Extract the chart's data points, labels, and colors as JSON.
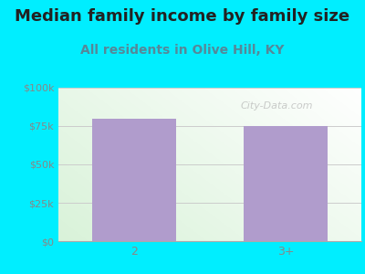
{
  "title": "Median family income by family size",
  "subtitle": "All residents in Olive Hill, KY",
  "categories": [
    "2",
    "3+"
  ],
  "values": [
    80000,
    75000
  ],
  "bar_color": "#b09ccc",
  "background_outer": "#00eeff",
  "ylim": [
    0,
    100000
  ],
  "yticks": [
    0,
    25000,
    50000,
    75000,
    100000
  ],
  "ytick_labels": [
    "$0",
    "$25k",
    "$50k",
    "$75k",
    "$100k"
  ],
  "title_fontsize": 13,
  "subtitle_fontsize": 10,
  "title_color": "#222222",
  "subtitle_color": "#558899",
  "tick_color": "#888888",
  "watermark": "City-Data.com",
  "grid_color": "#cccccc"
}
